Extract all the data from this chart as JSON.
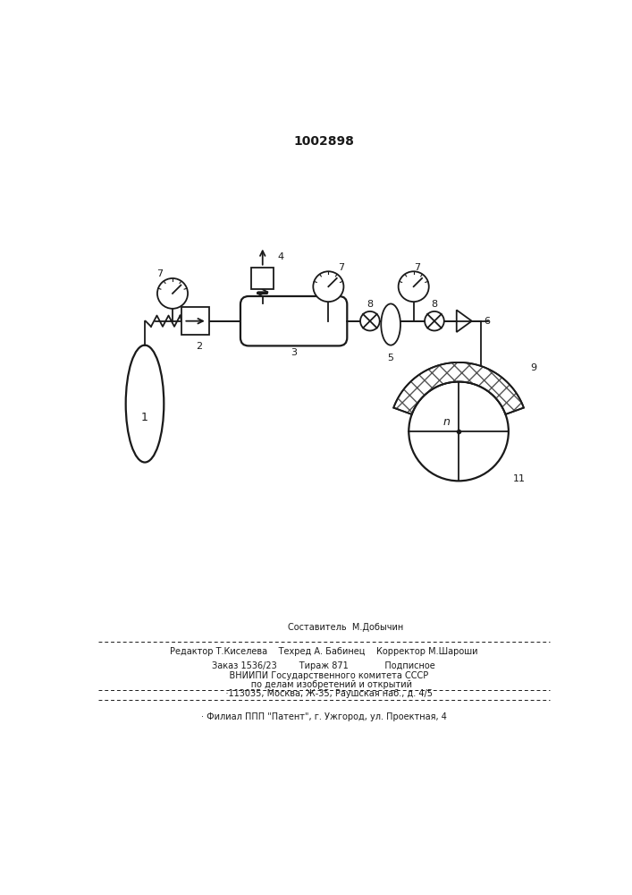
{
  "title": "1002898",
  "bg_color": "#ffffff",
  "line_color": "#1a1a1a",
  "footer": {
    "line1": "                Составитель  М.Добычин",
    "line2": "Редактор Т.Киселева    Техред А. Бабинец    Корректор М.Шароши",
    "line3": "Заказ 1536/23        Тираж 871             Подписное",
    "line4": "    ВНИИПИ Государственного комитета СССР",
    "line5": "      по делам изобретений и открытий",
    "line6": "    ·113035, Москва, Ж-35, Раушская наб., д. 4/5",
    "line7": "· Филиал ППП \"Патент\", г. Ужгород, ул. Проектная, 4"
  }
}
